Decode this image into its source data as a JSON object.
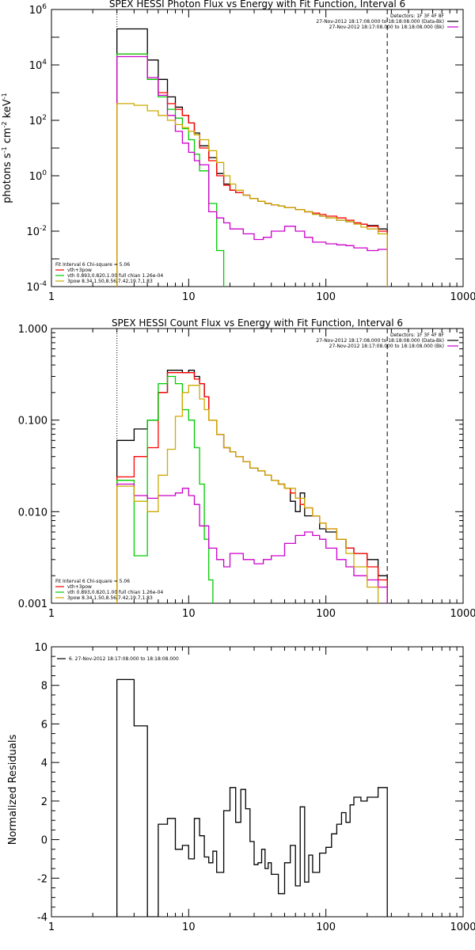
{
  "chart_data": [
    {
      "type": "line",
      "title": "SPEX HESSI Photon Flux vs Energy with Fit Function, Interval 6",
      "ylabel": "photons s-1 cm-2 keV-1",
      "ylabel_parts": [
        "photons s",
        "-1",
        " cm",
        "-2",
        " keV",
        "-1"
      ],
      "xscale": "log",
      "yscale": "log",
      "xlim": [
        1,
        1000
      ],
      "ylim": [
        0.0001,
        1000000
      ],
      "x_ticks": [
        1,
        10,
        100,
        1000
      ],
      "x_tick_labels": [
        "1",
        "10",
        "100",
        "1000"
      ],
      "y_ticks": [
        0.0001,
        0.01,
        1,
        100,
        10000,
        1000000
      ],
      "y_tick_labels": [
        {
          "base": "10",
          "exp": "-4"
        },
        {
          "base": "10",
          "exp": "-2"
        },
        {
          "base": "10",
          "exp": "0"
        },
        {
          "base": "10",
          "exp": "2"
        },
        {
          "base": "10",
          "exp": "4"
        },
        {
          "base": "10",
          "exp": "6"
        }
      ],
      "vlines": [
        {
          "x": 3.0,
          "style": "dotted",
          "color": "#000000"
        },
        {
          "x": 280,
          "style": "dashed",
          "color": "#000000"
        }
      ],
      "legend_top_right": [
        {
          "text": "Detectors: 1F 3F 4F 8F",
          "color": "#000000"
        },
        {
          "text": "27-Nov-2012 18:17:08.000 to 18:18:08.000 (Data-Bk)",
          "color": "#000000"
        },
        {
          "text": "27-Nov-2012 18:17:08.000 to 18:18:08.000 (Bk)",
          "color": "#cc00cc"
        }
      ],
      "legend_bottom_left": [
        {
          "text": "Fit Interval 6   Chi-square = 5.06",
          "color": "#000000"
        },
        {
          "text": "vth+3pow",
          "color": "#ff0000"
        },
        {
          "text": "vth 0.893,0.820,1.00  full chian 1.26e-04",
          "color": "#00cc00"
        },
        {
          "text": "3pow 8.34,1.50,8.56,7.42,19.7,1.83",
          "color": "#ccaa00"
        }
      ],
      "series": [
        {
          "color": "#000000",
          "x": [
            3,
            4,
            5,
            6,
            7,
            8,
            9,
            10,
            11,
            12,
            14,
            16,
            18,
            20,
            22,
            25,
            28,
            32,
            36,
            40,
            45,
            50,
            60,
            70,
            80,
            90,
            100,
            120,
            140,
            160,
            180,
            200,
            240,
            280
          ],
          "y": [
            200000,
            200000,
            15000,
            3000,
            700,
            300,
            150,
            80,
            35,
            12,
            4.5,
            1.2,
            0.5,
            0.3,
            0.25,
            0.2,
            0.15,
            0.12,
            0.1,
            0.09,
            0.08,
            0.07,
            0.06,
            0.05,
            0.04,
            0.035,
            0.03,
            0.025,
            0.022,
            0.02,
            0.018,
            0.016,
            0.012,
            0.0001
          ]
        },
        {
          "color": "#ff0000",
          "x": [
            3,
            4,
            5,
            6,
            7,
            8,
            9,
            10,
            11,
            12,
            14,
            16,
            18,
            20,
            22,
            25,
            28,
            32,
            36,
            40,
            45,
            50,
            60,
            70,
            80,
            90,
            100,
            120,
            140,
            160,
            180,
            200,
            240,
            280
          ],
          "y": [
            25000,
            25000,
            3000,
            1000,
            400,
            250,
            150,
            80,
            30,
            10,
            3.5,
            1.0,
            0.45,
            0.3,
            0.25,
            0.2,
            0.15,
            0.12,
            0.1,
            0.09,
            0.08,
            0.07,
            0.06,
            0.05,
            0.045,
            0.04,
            0.035,
            0.03,
            0.025,
            0.02,
            0.018,
            0.015,
            0.01,
            0.0001
          ]
        },
        {
          "color": "#00cc00",
          "x": [
            3,
            4,
            5,
            6,
            7,
            8,
            9,
            10,
            11,
            12,
            14,
            16,
            18
          ],
          "y": [
            25000,
            25000,
            3000,
            700,
            250,
            120,
            50,
            20,
            6,
            1.5,
            0.1,
            0.002,
            0.0001
          ]
        },
        {
          "color": "#cc00cc",
          "x": [
            3,
            4,
            5,
            6,
            7,
            8,
            9,
            10,
            11,
            12,
            14,
            16,
            18,
            20,
            25,
            30,
            35,
            40,
            50,
            60,
            70,
            80,
            100,
            120,
            140,
            160,
            200,
            240,
            280
          ],
          "y": [
            20000,
            20000,
            3500,
            800,
            150,
            40,
            15,
            7,
            3.5,
            2.5,
            0.05,
            0.03,
            0.02,
            0.012,
            0.008,
            0.005,
            0.006,
            0.01,
            0.015,
            0.01,
            0.006,
            0.004,
            0.0035,
            0.0032,
            0.003,
            0.0025,
            0.002,
            0.0022,
            0.0001
          ]
        },
        {
          "color": "#ccaa00",
          "x": [
            3,
            4,
            5,
            6,
            7,
            8,
            9,
            10,
            11,
            12,
            14,
            16,
            18,
            20,
            22,
            25,
            28,
            32,
            36,
            40,
            45,
            50,
            60,
            70,
            80,
            90,
            100,
            120,
            140,
            160,
            180,
            200,
            240,
            280
          ],
          "y": [
            400,
            350,
            220,
            150,
            100,
            70,
            55,
            40,
            30,
            20,
            8,
            3,
            1.0,
            0.5,
            0.3,
            0.2,
            0.15,
            0.12,
            0.1,
            0.09,
            0.08,
            0.07,
            0.06,
            0.05,
            0.04,
            0.035,
            0.03,
            0.025,
            0.022,
            0.018,
            0.014,
            0.012,
            0.008,
            0.0001
          ]
        }
      ]
    },
    {
      "type": "line",
      "title": "SPEX HESSI Count Flux vs Energy with Fit Function, Interval 6",
      "xscale": "log",
      "yscale": "log",
      "xlim": [
        1,
        1000
      ],
      "ylim": [
        0.001,
        1.0
      ],
      "x_ticks": [
        1,
        10,
        100,
        1000
      ],
      "x_tick_labels": [
        "1",
        "10",
        "100",
        "1000"
      ],
      "y_ticks": [
        0.001,
        0.01,
        0.1,
        1.0
      ],
      "y_tick_labels": [
        "0.001",
        "0.010",
        "0.100",
        "1.000"
      ],
      "vlines": [
        {
          "x": 3.0,
          "style": "dotted",
          "color": "#000000"
        },
        {
          "x": 280,
          "style": "dashed",
          "color": "#000000"
        }
      ],
      "legend_top_right": [
        {
          "text": "Detectors: 1F 3F 4F 8F",
          "color": "#000000"
        },
        {
          "text": "27-Nov-2012 18:17:08.000 to 18:18:08.000 (Data-Bk)",
          "color": "#000000"
        },
        {
          "text": "27-Nov-2012 18:17:08.000 to 18:18:08.000 (Bk)",
          "color": "#cc00cc"
        }
      ],
      "legend_bottom_left": [
        {
          "text": "Fit Interval 6   Chi-square = 5.06",
          "color": "#000000"
        },
        {
          "text": "vth+3pow",
          "color": "#ff0000"
        },
        {
          "text": "vth 0.893,0.820,1.00  full chian 1.26e-04",
          "color": "#00cc00"
        },
        {
          "text": "3pow 8.34,1.50,8.56,7.42,19.7,1.83",
          "color": "#ccaa00"
        }
      ],
      "series": [
        {
          "color": "#000000",
          "x": [
            3,
            4,
            5,
            6,
            7,
            8,
            9,
            10,
            11,
            12,
            13,
            14,
            16,
            18,
            20,
            22,
            25,
            28,
            32,
            36,
            40,
            45,
            50,
            55,
            60,
            65,
            70,
            80,
            90,
            100,
            120,
            140,
            160,
            200,
            240,
            280
          ],
          "y": [
            0.06,
            0.08,
            0.1,
            0.2,
            0.35,
            0.35,
            0.33,
            0.35,
            0.3,
            0.25,
            0.18,
            0.1,
            0.07,
            0.05,
            0.045,
            0.04,
            0.035,
            0.03,
            0.028,
            0.025,
            0.022,
            0.02,
            0.018,
            0.013,
            0.01,
            0.016,
            0.009,
            0.009,
            0.0065,
            0.006,
            0.005,
            0.004,
            0.0035,
            0.003,
            0.002,
            0.001
          ]
        },
        {
          "color": "#ff0000",
          "x": [
            3,
            4,
            5,
            6,
            7,
            8,
            9,
            10,
            11,
            12,
            13,
            14,
            16,
            18,
            20,
            22,
            25,
            28,
            32,
            36,
            40,
            45,
            50,
            55,
            60,
            65,
            70,
            80,
            90,
            100,
            120,
            140,
            160,
            200,
            240,
            280
          ],
          "y": [
            0.024,
            0.04,
            0.05,
            0.2,
            0.33,
            0.33,
            0.33,
            0.33,
            0.28,
            0.25,
            0.18,
            0.1,
            0.07,
            0.05,
            0.045,
            0.04,
            0.035,
            0.03,
            0.028,
            0.025,
            0.022,
            0.02,
            0.018,
            0.016,
            0.014,
            0.012,
            0.011,
            0.009,
            0.0075,
            0.0065,
            0.005,
            0.004,
            0.0035,
            0.0025,
            0.0018,
            0.001
          ]
        },
        {
          "color": "#00cc00",
          "x": [
            3,
            4,
            5,
            6,
            7,
            8,
            9,
            10,
            11,
            12,
            13,
            14,
            15
          ],
          "y": [
            0.022,
            0.0033,
            0.1,
            0.25,
            0.3,
            0.25,
            0.13,
            0.1,
            0.05,
            0.02,
            0.005,
            0.0018,
            0.001
          ]
        },
        {
          "color": "#cc00cc",
          "x": [
            3,
            4,
            5,
            6,
            7,
            8,
            9,
            10,
            11,
            12,
            14,
            16,
            18,
            20,
            25,
            30,
            35,
            40,
            50,
            60,
            70,
            80,
            90,
            100,
            120,
            140,
            160,
            200,
            240,
            280
          ],
          "y": [
            0.02,
            0.015,
            0.014,
            0.015,
            0.015,
            0.016,
            0.018,
            0.015,
            0.012,
            0.007,
            0.004,
            0.003,
            0.0025,
            0.0035,
            0.003,
            0.0027,
            0.003,
            0.0033,
            0.0045,
            0.0055,
            0.006,
            0.0055,
            0.005,
            0.004,
            0.003,
            0.0025,
            0.002,
            0.0018,
            0.0015,
            0.001
          ]
        },
        {
          "color": "#ccaa00",
          "x": [
            3,
            4,
            5,
            6,
            7,
            8,
            9,
            10,
            11,
            12,
            13,
            14,
            16,
            18,
            20,
            22,
            25,
            28,
            32,
            36,
            40,
            45,
            50,
            60,
            70,
            80,
            90,
            100,
            120,
            140,
            160,
            200,
            240
          ],
          "y": [
            0.019,
            0.013,
            0.01,
            0.025,
            0.048,
            0.11,
            0.2,
            0.24,
            0.24,
            0.17,
            0.13,
            0.1,
            0.07,
            0.05,
            0.045,
            0.04,
            0.035,
            0.03,
            0.028,
            0.025,
            0.022,
            0.02,
            0.018,
            0.014,
            0.011,
            0.009,
            0.0075,
            0.0065,
            0.005,
            0.0035,
            0.0025,
            0.0015,
            0.001
          ]
        }
      ]
    },
    {
      "type": "line",
      "ylabel": "Normalized Residuals",
      "xscale": "log",
      "yscale": "linear",
      "xlim": [
        1,
        1000
      ],
      "ylim": [
        -4,
        10
      ],
      "x_ticks": [
        1,
        10,
        100,
        1000
      ],
      "x_tick_labels": [
        "1",
        "10",
        "100",
        "1000"
      ],
      "y_ticks": [
        -4,
        -2,
        0,
        2,
        4,
        6,
        8,
        10
      ],
      "y_tick_labels": [
        "-4",
        "-2",
        "0",
        "2",
        "4",
        "6",
        "8",
        "10"
      ],
      "legend_top_left": [
        {
          "text": "6. 27-Nov-2012 18:17:08.000 to 18:18:08.000",
          "color": "#000000"
        }
      ],
      "series": [
        {
          "color": "#000000",
          "x": [
            3,
            4,
            5,
            6,
            7,
            8,
            9,
            10,
            11,
            12,
            13,
            14,
            15,
            16,
            18,
            20,
            22,
            24,
            26,
            28,
            30,
            32,
            34,
            36,
            38,
            40,
            45,
            50,
            55,
            60,
            65,
            70,
            75,
            80,
            90,
            100,
            110,
            120,
            130,
            140,
            150,
            160,
            180,
            200,
            240,
            280
          ],
          "y": [
            8.3,
            5.9,
            -4.0,
            0.8,
            1.1,
            -0.5,
            -0.3,
            -1.0,
            1.1,
            0.2,
            -0.9,
            -1.2,
            -0.6,
            -1.7,
            1.5,
            2.7,
            0.9,
            2.6,
            1.6,
            -0.1,
            -1.3,
            -1.2,
            -0.5,
            -1.5,
            -1.2,
            -1.8,
            -2.8,
            -1.2,
            -0.3,
            -2.4,
            1.7,
            -2.2,
            -0.8,
            -1.7,
            -0.7,
            -0.4,
            0.3,
            0.8,
            1.4,
            0.9,
            1.8,
            2.2,
            2.0,
            2.2,
            2.7,
            -4.0
          ]
        }
      ]
    }
  ]
}
